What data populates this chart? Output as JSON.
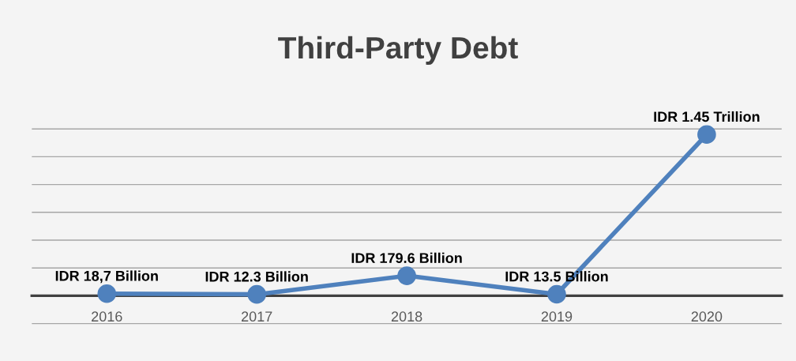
{
  "chart_data": {
    "type": "line",
    "title": "Third-Party Debt",
    "categories": [
      "2016",
      "2017",
      "2018",
      "2019",
      "2020"
    ],
    "series": [
      {
        "color": "#4f81bd",
        "values": [
          18.7,
          12.3,
          179.6,
          13.5,
          1450
        ],
        "value_labels": [
          "IDR 18,7 Billion",
          "IDR 12.3 Billion",
          "IDR 179.6 Billion",
          "IDR 13.5 Billion",
          "IDR 1.45 Trillion"
        ]
      }
    ],
    "tick_labels": "x",
    "grid": "y",
    "marker": "circle",
    "line_style": "solid"
  }
}
